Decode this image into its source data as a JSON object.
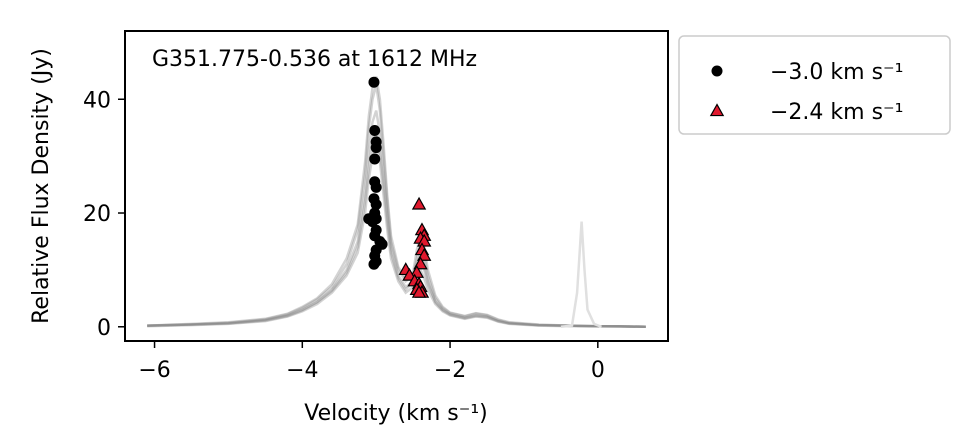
{
  "chart_data": {
    "type": "scatter",
    "title": "G351.775-0.536 at 1612 MHz",
    "xlabel": "Velocity (km s⁻¹)",
    "ylabel": "Relative Flux Density (Jy)",
    "xlim": [
      -6.4,
      0.95
    ],
    "ylim": [
      -2.5,
      52
    ],
    "xticks": [
      -6,
      -4,
      -2,
      0
    ],
    "xtick_labels": [
      "−6",
      "−4",
      "−2",
      "0"
    ],
    "yticks": [
      0,
      20,
      40
    ],
    "ytick_labels": [
      "0",
      "20",
      "40"
    ],
    "legend_placement": "outside-right",
    "grid": false,
    "background_spectra": {
      "color": "#808080",
      "x": [
        -6.1,
        -5.5,
        -5.0,
        -4.5,
        -4.2,
        -4.0,
        -3.8,
        -3.6,
        -3.4,
        -3.25,
        -3.15,
        -3.1,
        -3.05,
        -3.0,
        -2.95,
        -2.9,
        -2.85,
        -2.8,
        -2.7,
        -2.6,
        -2.5,
        -2.45,
        -2.4,
        -2.35,
        -2.3,
        -2.2,
        -2.1,
        -2.0,
        -1.8,
        -1.65,
        -1.5,
        -1.35,
        -1.2,
        -0.8,
        -0.4,
        0.0,
        0.3,
        0.65
      ],
      "y_profiles": [
        [
          0.2,
          0.4,
          0.6,
          1.2,
          2.0,
          3.0,
          4.4,
          6.5,
          10.0,
          15.0,
          24.0,
          31.0,
          36.0,
          38.0,
          34.0,
          27.0,
          20.0,
          14.0,
          9.0,
          7.0,
          8.0,
          10.0,
          11.5,
          10.0,
          7.5,
          4.5,
          3.0,
          2.2,
          1.6,
          2.0,
          1.8,
          1.0,
          0.6,
          0.3,
          0.2,
          0.1,
          0.1,
          0.0
        ],
        [
          0.2,
          0.4,
          0.7,
          1.3,
          2.2,
          3.3,
          4.8,
          7.0,
          11.0,
          17.0,
          27.0,
          35.0,
          40.0,
          42.5,
          38.0,
          30.0,
          22.0,
          15.0,
          10.0,
          8.0,
          9.0,
          12.0,
          14.5,
          12.5,
          9.0,
          5.0,
          3.3,
          2.4,
          1.8,
          2.3,
          2.0,
          1.2,
          0.7,
          0.3,
          0.2,
          0.1,
          0.1,
          0.0
        ],
        [
          0.1,
          0.3,
          0.5,
          1.0,
          1.8,
          2.7,
          4.0,
          6.0,
          9.0,
          13.0,
          20.0,
          26.0,
          30.0,
          33.0,
          29.0,
          23.0,
          17.0,
          12.0,
          8.0,
          6.0,
          7.0,
          9.0,
          10.0,
          8.5,
          6.5,
          4.0,
          2.7,
          2.0,
          1.4,
          1.8,
          1.6,
          0.9,
          0.5,
          0.2,
          0.1,
          0.1,
          0.0,
          0.0
        ],
        [
          0.2,
          0.4,
          0.6,
          1.1,
          1.9,
          2.9,
          4.3,
          6.3,
          9.5,
          14.0,
          22.0,
          28.0,
          33.0,
          35.0,
          31.0,
          25.0,
          18.5,
          13.0,
          8.5,
          6.5,
          8.0,
          11.0,
          13.0,
          11.0,
          8.0,
          4.3,
          2.9,
          2.1,
          1.5,
          1.9,
          1.7,
          1.0,
          0.6,
          0.3,
          0.2,
          0.1,
          0.1,
          0.0
        ],
        [
          0.2,
          0.5,
          0.8,
          1.4,
          2.3,
          3.5,
          5.0,
          7.5,
          12.0,
          18.0,
          29.0,
          37.0,
          42.0,
          44.0,
          40.0,
          32.0,
          23.0,
          16.0,
          10.5,
          8.5,
          9.5,
          13.5,
          16.0,
          14.0,
          10.0,
          5.5,
          3.5,
          2.5,
          1.9,
          2.4,
          2.1,
          1.3,
          0.8,
          0.4,
          0.2,
          0.1,
          0.1,
          0.0
        ]
      ]
    },
    "outlier_spectrum": {
      "color": "#e0e0e0",
      "x": [
        -0.5,
        -0.35,
        -0.28,
        -0.22,
        -0.18,
        -0.14,
        -0.05,
        0.05
      ],
      "y": [
        0.0,
        0.2,
        6.0,
        18.5,
        10.0,
        3.0,
        0.5,
        0.0
      ]
    },
    "series": [
      {
        "name": "−3.0 km s⁻¹",
        "marker": "circle",
        "color": "#000000",
        "points": [
          [
            -3.03,
            43.0
          ],
          [
            -3.02,
            34.5
          ],
          [
            -3.0,
            32.5
          ],
          [
            -3.0,
            31.5
          ],
          [
            -3.02,
            29.5
          ],
          [
            -3.02,
            25.5
          ],
          [
            -3.0,
            24.5
          ],
          [
            -3.03,
            22.5
          ],
          [
            -3.0,
            21.5
          ],
          [
            -3.02,
            20.0
          ],
          [
            -3.0,
            19.0
          ],
          [
            -3.05,
            18.5
          ],
          [
            -3.1,
            19.0
          ],
          [
            -3.0,
            17.0
          ],
          [
            -3.02,
            16.0
          ],
          [
            -2.95,
            15.0
          ],
          [
            -2.92,
            14.5
          ],
          [
            -3.0,
            13.5
          ],
          [
            -3.02,
            12.5
          ],
          [
            -3.0,
            11.5
          ],
          [
            -3.03,
            11.0
          ]
        ]
      },
      {
        "name": "−2.4 km s⁻¹",
        "marker": "triangle",
        "color": "#e0192e",
        "stroke": "#000000",
        "points": [
          [
            -2.42,
            21.5
          ],
          [
            -2.38,
            17.0
          ],
          [
            -2.35,
            16.0
          ],
          [
            -2.4,
            15.5
          ],
          [
            -2.35,
            15.0
          ],
          [
            -2.38,
            13.5
          ],
          [
            -2.35,
            12.5
          ],
          [
            -2.4,
            11.0
          ],
          [
            -2.6,
            10.0
          ],
          [
            -2.45,
            9.5
          ],
          [
            -2.55,
            9.0
          ],
          [
            -2.48,
            8.0
          ],
          [
            -2.42,
            7.5
          ],
          [
            -2.4,
            7.0
          ],
          [
            -2.45,
            6.5
          ],
          [
            -2.38,
            6.0
          ],
          [
            -2.42,
            6.0
          ]
        ]
      }
    ]
  }
}
